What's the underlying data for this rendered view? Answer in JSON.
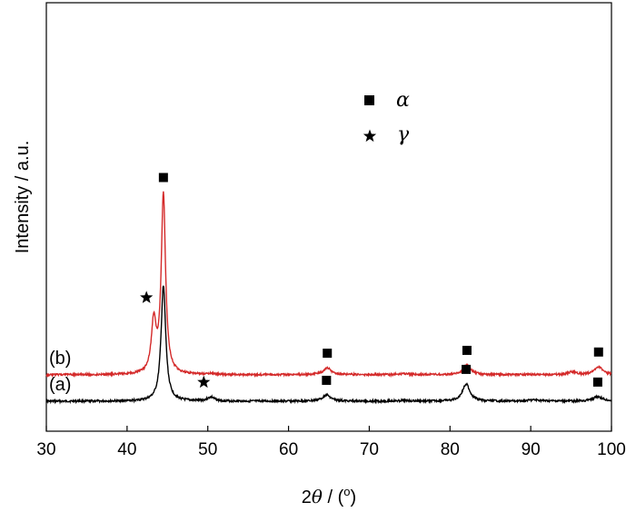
{
  "chart_data": {
    "type": "line",
    "xlabel_prefix": "2",
    "xlabel_theta": "θ",
    "xlabel_suffix": " / (",
    "xlabel_unit": "o",
    "xlabel_close": ")",
    "ylabel": "Intensity / a.u.",
    "xlim": [
      30,
      100
    ],
    "x_ticks": [
      30,
      40,
      50,
      60,
      70,
      80,
      90,
      100
    ],
    "y_ticks_shown": false,
    "grid": false,
    "legend": {
      "placement": "top-center",
      "entries": [
        {
          "marker": "square",
          "label": "α"
        },
        {
          "marker": "star",
          "label": "γ"
        }
      ]
    },
    "series": [
      {
        "name": "(a)",
        "color": "#000000",
        "baseline": 0,
        "peaks": [
          {
            "x": 44.5,
            "height": 100,
            "width": 0.35,
            "phase": "α"
          },
          {
            "x": 50.4,
            "height": 3.5,
            "width": 0.5,
            "phase": "γ"
          },
          {
            "x": 64.7,
            "height": 5.5,
            "width": 0.6,
            "phase": "α"
          },
          {
            "x": 74.4,
            "height": 0.6,
            "width": 0.8,
            "phase": ""
          },
          {
            "x": 82.0,
            "height": 15,
            "width": 0.55,
            "phase": "α"
          },
          {
            "x": 90.4,
            "height": 1.0,
            "width": 1.0,
            "phase": ""
          },
          {
            "x": 98.3,
            "height": 4.0,
            "width": 0.7,
            "phase": "α"
          }
        ]
      },
      {
        "name": "(b)",
        "color": "#d42a2a",
        "baseline": 23,
        "peaks": [
          {
            "x": 43.3,
            "height": 44,
            "width": 0.35,
            "phase": "γ"
          },
          {
            "x": 44.5,
            "height": 155,
            "width": 0.32,
            "phase": "α"
          },
          {
            "x": 50.4,
            "height": 0.8,
            "width": 0.5,
            "phase": ""
          },
          {
            "x": 64.8,
            "height": 6.0,
            "width": 0.55,
            "phase": "α"
          },
          {
            "x": 74.4,
            "height": 0.8,
            "width": 0.8,
            "phase": ""
          },
          {
            "x": 82.1,
            "height": 8.5,
            "width": 0.55,
            "phase": "α"
          },
          {
            "x": 95.2,
            "height": 2.5,
            "width": 0.6,
            "phase": ""
          },
          {
            "x": 98.4,
            "height": 7.0,
            "width": 0.6,
            "phase": "α"
          }
        ]
      }
    ],
    "annotations": [
      {
        "series": "(b)",
        "x": 44.5,
        "marker": "square"
      },
      {
        "series": "(b)",
        "x": 43.3,
        "marker": "star"
      },
      {
        "series": "(b)",
        "x": 64.8,
        "marker": "square"
      },
      {
        "series": "(b)",
        "x": 82.1,
        "marker": "square"
      },
      {
        "series": "(b)",
        "x": 98.4,
        "marker": "square"
      },
      {
        "series": "(a)",
        "x": 50.4,
        "marker": "star"
      },
      {
        "series": "(a)",
        "x": 64.7,
        "marker": "square"
      },
      {
        "series": "(a)",
        "x": 82.0,
        "marker": "square"
      },
      {
        "series": "(a)",
        "x": 98.3,
        "marker": "square"
      }
    ]
  }
}
